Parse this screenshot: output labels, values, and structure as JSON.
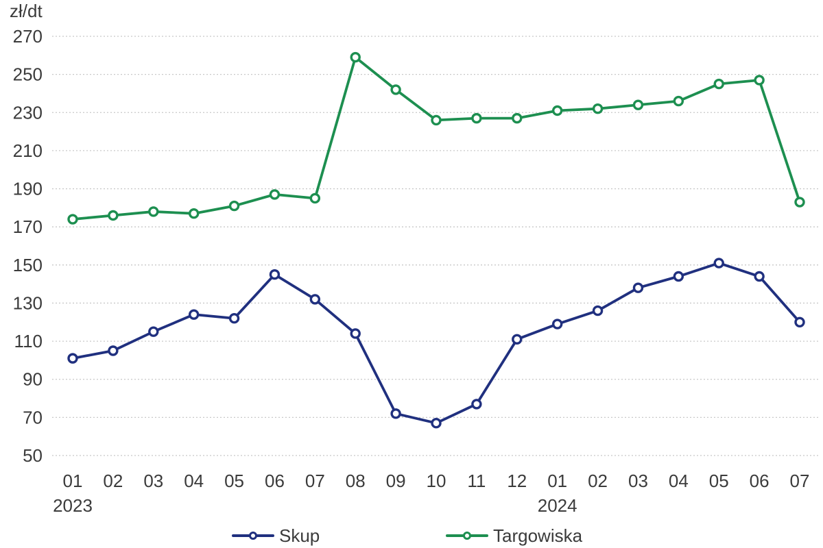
{
  "chart_data": {
    "type": "line",
    "title": "",
    "ylabel": "zł/dt",
    "xlabel": "",
    "ylim": [
      50,
      270
    ],
    "yticks": [
      270,
      250,
      230,
      210,
      190,
      170,
      150,
      130,
      110,
      90,
      70,
      50
    ],
    "grid": true,
    "gridline_style": "dotted",
    "legend_position": "bottom",
    "categories": [
      "01",
      "02",
      "03",
      "04",
      "05",
      "06",
      "07",
      "08",
      "09",
      "10",
      "11",
      "12",
      "01",
      "02",
      "03",
      "04",
      "05",
      "06",
      "07"
    ],
    "year_labels": [
      {
        "index": 0,
        "label": "2023"
      },
      {
        "index": 12,
        "label": "2024"
      }
    ],
    "series": [
      {
        "name": "Skup",
        "color": "#20307f",
        "values": [
          101,
          105,
          115,
          124,
          122,
          145,
          132,
          114,
          72,
          67,
          77,
          111,
          119,
          126,
          138,
          144,
          151,
          144,
          120
        ]
      },
      {
        "name": "Targowiska",
        "color": "#1d8f50",
        "values": [
          174,
          176,
          178,
          177,
          181,
          187,
          185,
          259,
          242,
          226,
          227,
          227,
          231,
          232,
          234,
          236,
          245,
          247,
          183
        ]
      }
    ]
  }
}
